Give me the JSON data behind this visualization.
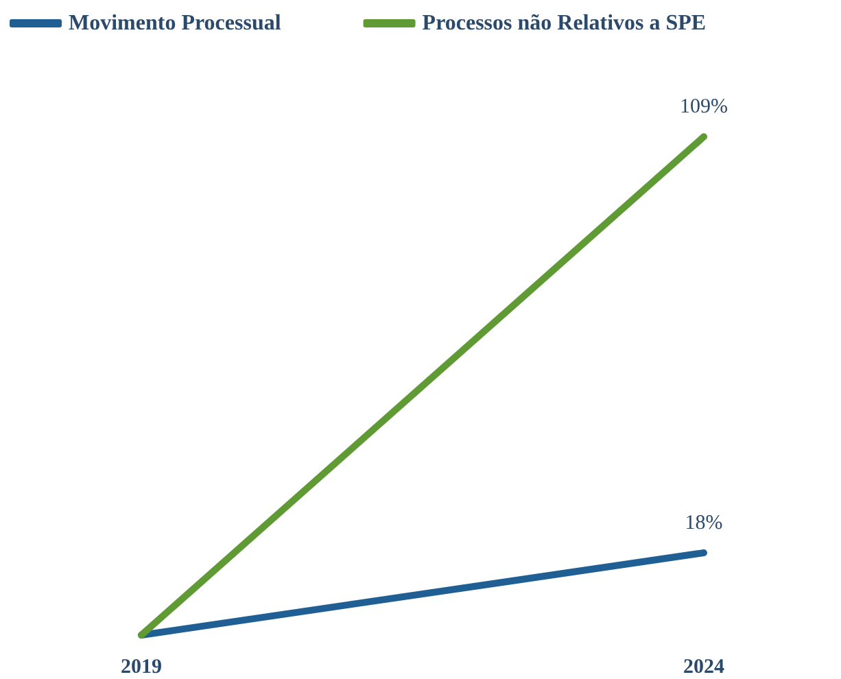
{
  "chart_data": {
    "type": "line",
    "categories": [
      "2019",
      "2024"
    ],
    "series": [
      {
        "name": "Movimento Processual",
        "color": "#1f5f94",
        "values": [
          0,
          18
        ],
        "value_labels": [
          null,
          "18%"
        ]
      },
      {
        "name": "Processos não Relativos a SPE",
        "color": "#5f9a35",
        "values": [
          0,
          109
        ],
        "value_labels": [
          null,
          "109%"
        ]
      }
    ],
    "legend": "top left",
    "grid": false,
    "marker": "none",
    "line_style": "solid",
    "tick_labels": "x"
  }
}
